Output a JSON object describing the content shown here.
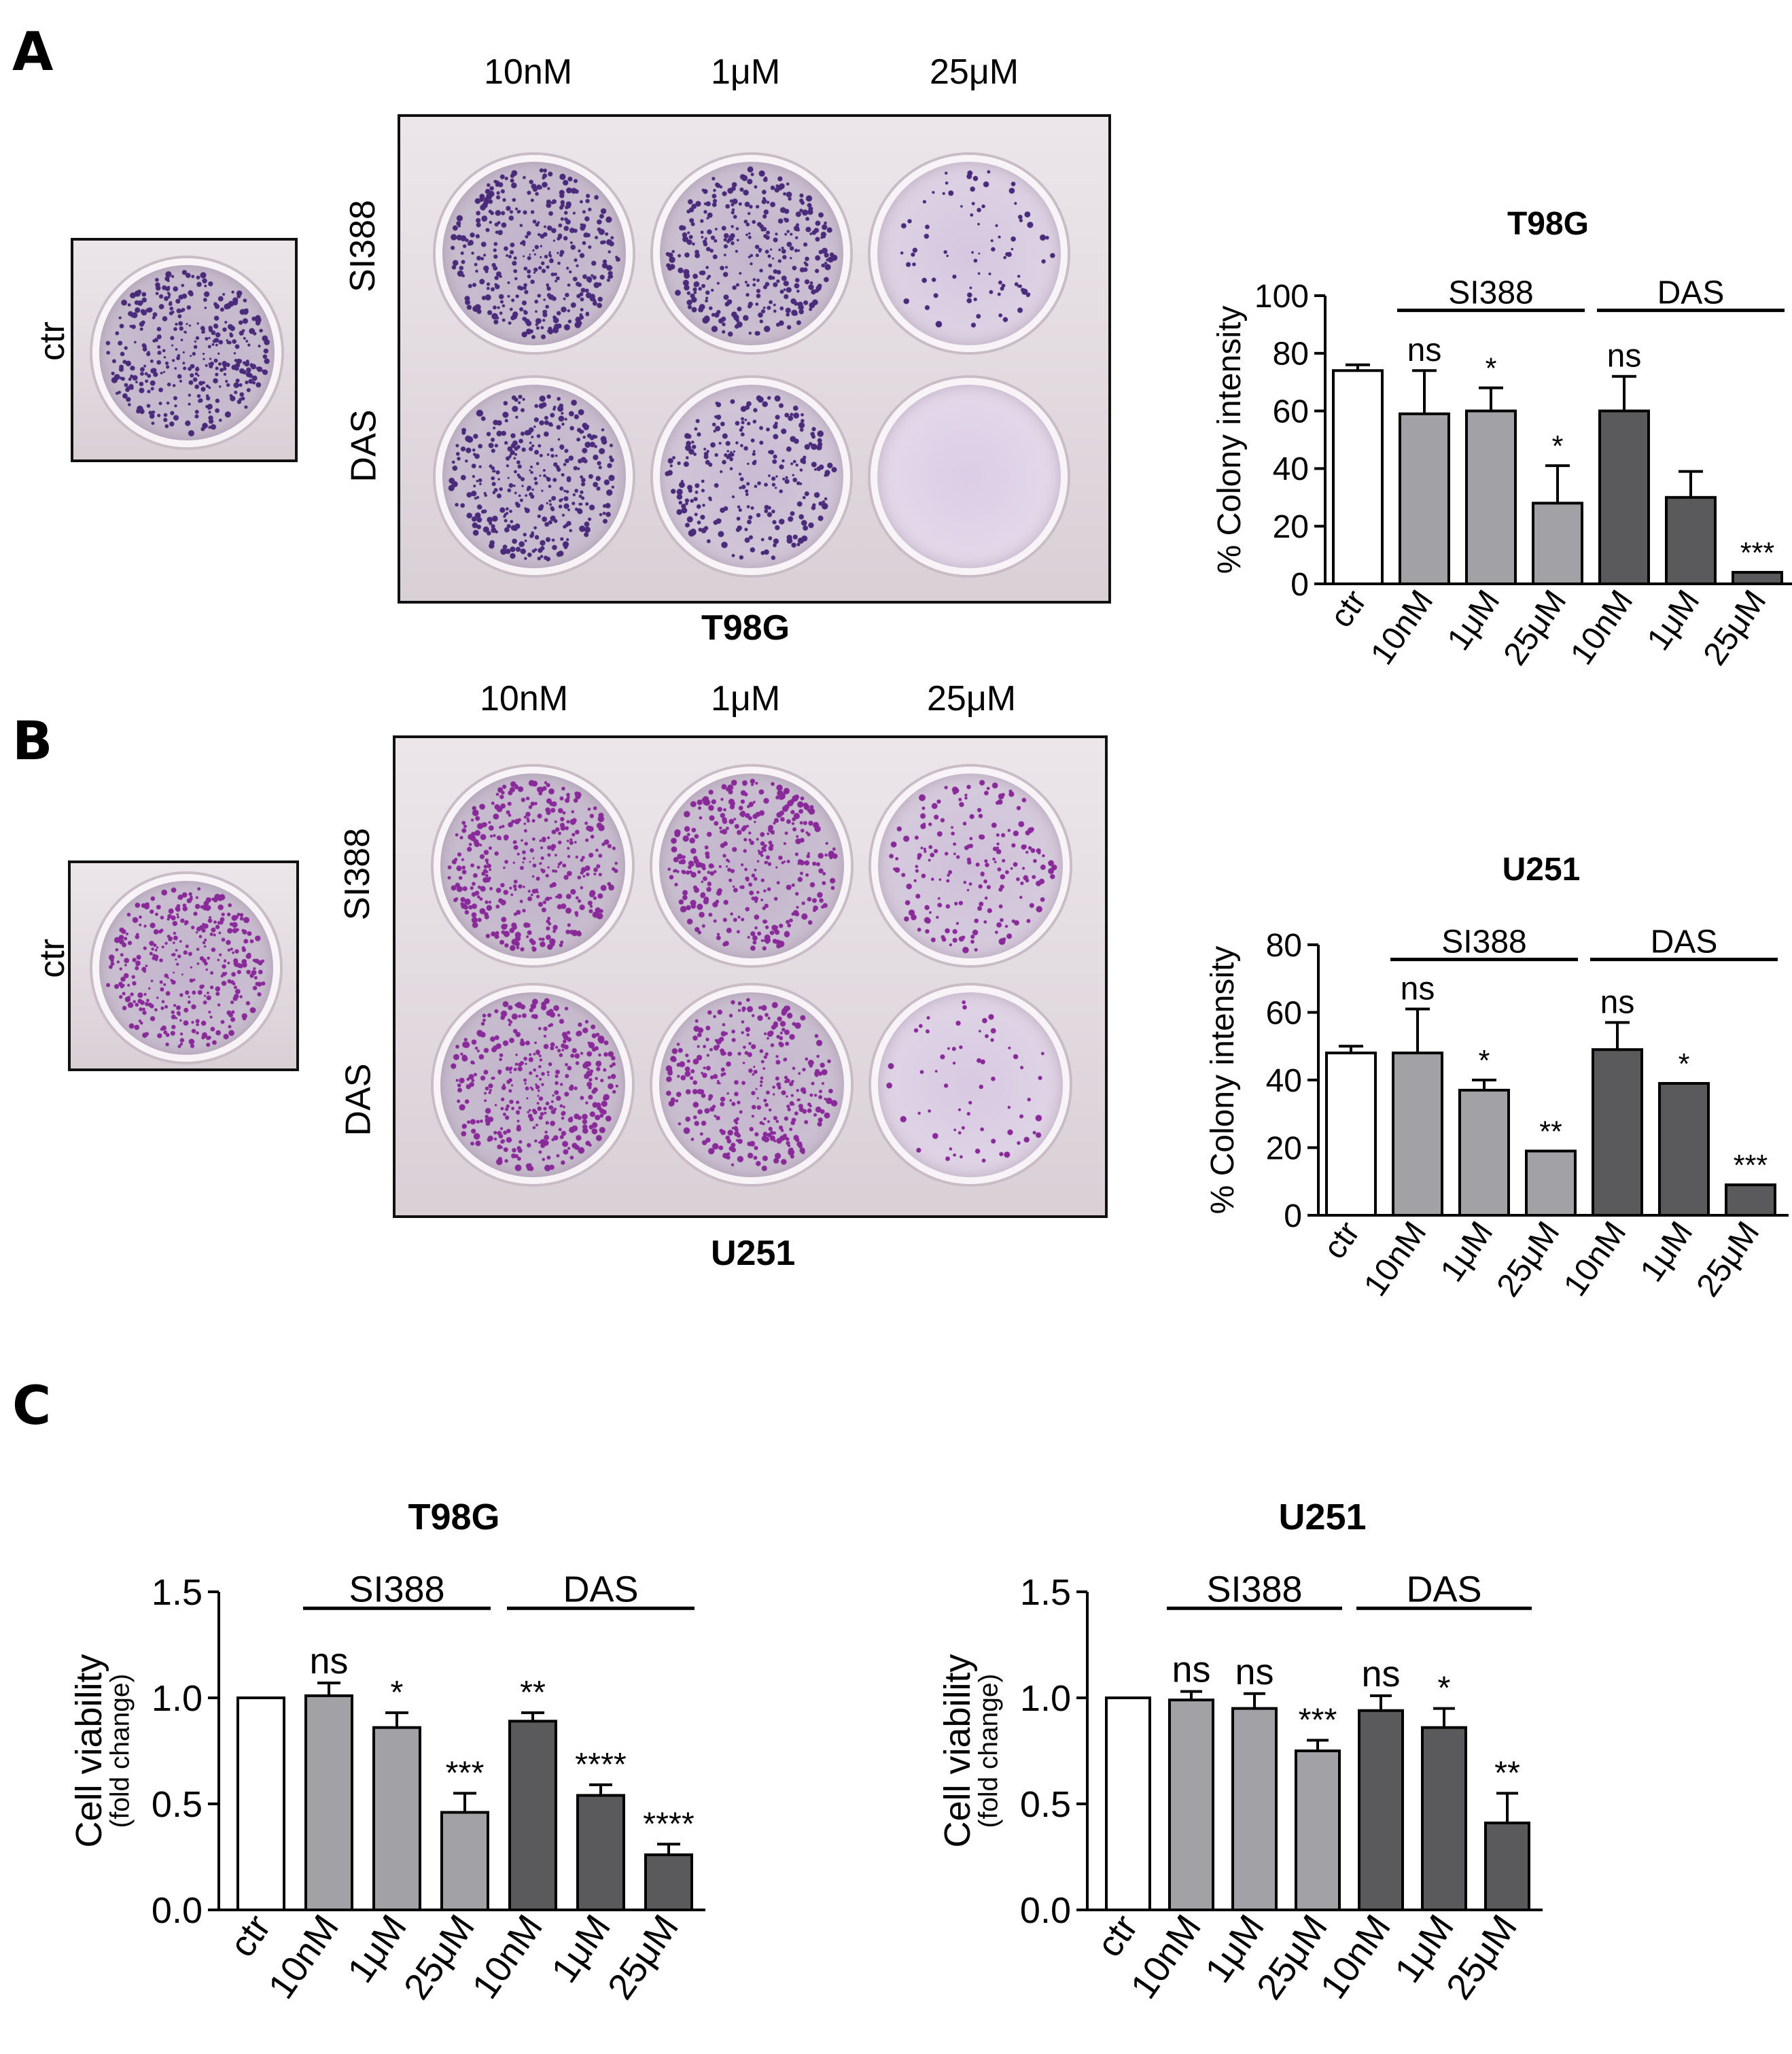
{
  "panels": {
    "A": {
      "letter": "A",
      "ctr_label": "ctr",
      "row_labels": [
        "SI388",
        "DAS"
      ],
      "col_labels": [
        "10nM",
        "1μM",
        "25μM"
      ],
      "plate_label": "T98G",
      "staining": [
        [
          0.9,
          0.8,
          0.2
        ],
        [
          0.85,
          0.6,
          0.0
        ]
      ],
      "ctr_staining": 0.9,
      "stain_color": "#4a2a7a"
    },
    "B": {
      "letter": "B",
      "ctr_label": "ctr",
      "row_labels": [
        "SI388",
        "DAS"
      ],
      "col_labels": [
        "10nM",
        "1μM",
        "25μM"
      ],
      "plate_label": "U251",
      "staining": [
        [
          0.9,
          0.85,
          0.45
        ],
        [
          0.9,
          0.8,
          0.15
        ]
      ],
      "ctr_staining": 0.85,
      "stain_color": "#8a2a9a"
    },
    "C": {
      "letter": "C"
    }
  },
  "colors": {
    "ctr": "#ffffff",
    "SI388": "#a2a2a6",
    "DAS": "#5a5a5c",
    "stroke": "#000000"
  },
  "chart_data": [
    {
      "id": "A",
      "type": "bar",
      "title": "T98G",
      "ylabel": "% Colony intensity",
      "ylabel_sub": "",
      "ylim": [
        0,
        100
      ],
      "yticks": [
        "0",
        "20",
        "40",
        "60",
        "80",
        "100"
      ],
      "categories": [
        "ctr",
        "10nM",
        "1μM",
        "25μM",
        "10nM",
        "1μM",
        "25μM"
      ],
      "groups": [
        "ctr",
        "SI388",
        "SI388",
        "SI388",
        "DAS",
        "DAS",
        "DAS"
      ],
      "values": [
        74,
        59,
        60,
        28,
        60,
        30,
        4
      ],
      "errors": [
        2,
        15,
        8,
        13,
        12,
        9,
        0
      ],
      "significance": [
        "",
        "ns",
        "*",
        "*",
        "ns",
        "",
        "***"
      ],
      "group_labels": [
        {
          "name": "SI388",
          "from": 1,
          "to": 3
        },
        {
          "name": "DAS",
          "from": 4,
          "to": 6
        }
      ]
    },
    {
      "id": "B",
      "type": "bar",
      "title": "U251",
      "ylabel": "% Colony intensity",
      "ylabel_sub": "",
      "ylim": [
        0,
        80
      ],
      "yticks": [
        "0",
        "20",
        "40",
        "60",
        "80"
      ],
      "categories": [
        "ctr",
        "10nM",
        "1μM",
        "25μM",
        "10nM",
        "1μM",
        "25μM"
      ],
      "groups": [
        "ctr",
        "SI388",
        "SI388",
        "SI388",
        "DAS",
        "DAS",
        "DAS"
      ],
      "values": [
        48,
        48,
        37,
        19,
        49,
        39,
        9
      ],
      "errors": [
        2,
        13,
        3,
        0,
        8,
        0,
        0
      ],
      "significance": [
        "",
        "ns",
        "*",
        "**",
        "ns",
        "*",
        "***"
      ],
      "group_labels": [
        {
          "name": "SI388",
          "from": 1,
          "to": 3
        },
        {
          "name": "DAS",
          "from": 4,
          "to": 6
        }
      ]
    },
    {
      "id": "C1",
      "type": "bar",
      "title": "T98G",
      "ylabel": "Cell viability",
      "ylabel_sub": "(fold change)",
      "ylim": [
        0,
        1.5
      ],
      "yticks": [
        "0.0",
        "0.5",
        "1.0",
        "1.5"
      ],
      "categories": [
        "ctr",
        "10nM",
        "1μM",
        "25μM",
        "10nM",
        "1μM",
        "25μM"
      ],
      "groups": [
        "ctr",
        "SI388",
        "SI388",
        "SI388",
        "DAS",
        "DAS",
        "DAS"
      ],
      "values": [
        1.0,
        1.01,
        0.86,
        0.46,
        0.89,
        0.54,
        0.26
      ],
      "errors": [
        0,
        0.06,
        0.07,
        0.09,
        0.04,
        0.05,
        0.05
      ],
      "significance": [
        "",
        "ns",
        "*",
        "***",
        "**",
        "****",
        "****"
      ],
      "group_labels": [
        {
          "name": "SI388",
          "from": 1,
          "to": 3
        },
        {
          "name": "DAS",
          "from": 4,
          "to": 6
        }
      ]
    },
    {
      "id": "C2",
      "type": "bar",
      "title": "U251",
      "ylabel": "Cell viability",
      "ylabel_sub": "(fold change)",
      "ylim": [
        0,
        1.5
      ],
      "yticks": [
        "0.0",
        "0.5",
        "1.0",
        "1.5"
      ],
      "categories": [
        "ctr",
        "10nM",
        "1μM",
        "25μM",
        "10nM",
        "1μM",
        "25μM"
      ],
      "groups": [
        "ctr",
        "SI388",
        "SI388",
        "SI388",
        "DAS",
        "DAS",
        "DAS"
      ],
      "values": [
        1.0,
        0.99,
        0.95,
        0.75,
        0.94,
        0.86,
        0.41
      ],
      "errors": [
        0,
        0.04,
        0.07,
        0.05,
        0.07,
        0.09,
        0.14
      ],
      "significance": [
        "",
        "ns",
        "ns",
        "***",
        "ns",
        "*",
        "**"
      ],
      "group_labels": [
        {
          "name": "SI388",
          "from": 1,
          "to": 3
        },
        {
          "name": "DAS",
          "from": 4,
          "to": 6
        }
      ]
    }
  ]
}
